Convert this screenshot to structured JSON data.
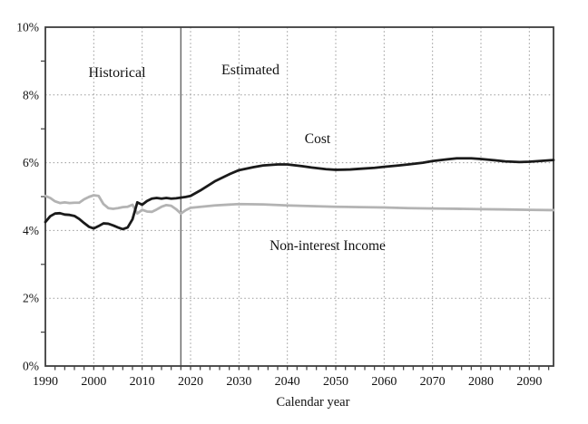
{
  "page": {
    "background": "#ffffff",
    "description": "Line chart of OASDI cost and non-interest income as a percentage, historical and estimated, 1990-2095"
  },
  "chart_data": {
    "type": "line",
    "title": "",
    "xlabel": "Calendar year",
    "ylabel": "",
    "x_range": [
      1990,
      2095
    ],
    "y_range": [
      0,
      10
    ],
    "y_unit": "%",
    "grid": "dotted gridlines at each labeled major tick; full rectangular frame; minor ticks every 1% on y-axis and every 2 years on x-axis",
    "legend_position": "none (labels drawn beside lines)",
    "x_ticks": [
      {
        "year": 1990,
        "label": "1990"
      },
      {
        "year": 2000,
        "label": "2000"
      },
      {
        "year": 2010,
        "label": "2010"
      },
      {
        "year": 2020,
        "label": "2020"
      },
      {
        "year": 2030,
        "label": "2030"
      },
      {
        "year": 2040,
        "label": "2040"
      },
      {
        "year": 2050,
        "label": "2050"
      },
      {
        "year": 2060,
        "label": "2060"
      },
      {
        "year": 2070,
        "label": "2070"
      },
      {
        "year": 2080,
        "label": "2080"
      },
      {
        "year": 2090,
        "label": "2090"
      }
    ],
    "y_ticks": [
      {
        "value": 0,
        "label": "0%"
      },
      {
        "value": 2,
        "label": "2%"
      },
      {
        "value": 4,
        "label": "4%"
      },
      {
        "value": 6,
        "label": "6%"
      },
      {
        "value": 8,
        "label": "8%"
      },
      {
        "value": 10,
        "label": "10%"
      }
    ],
    "divider_year": 2018,
    "annotations": {
      "historical": "Historical",
      "estimated": "Estimated",
      "cost": "Cost",
      "non_interest_income": "Non-interest Income"
    },
    "colors": {
      "cost_line": "#1a1a1a",
      "income_line": "#b3b3b3",
      "gridline": "#999999",
      "divider_line": "#666666",
      "frame": "#3d3d3d",
      "tick": "#3d3d3d"
    },
    "series": [
      {
        "name": "Cost",
        "color_key": "cost_line",
        "points": [
          [
            1990,
            4.25
          ],
          [
            1991,
            4.42
          ],
          [
            1992,
            4.5
          ],
          [
            1993,
            4.51
          ],
          [
            1994,
            4.47
          ],
          [
            1995,
            4.46
          ],
          [
            1996,
            4.43
          ],
          [
            1997,
            4.34
          ],
          [
            1998,
            4.22
          ],
          [
            1999,
            4.11
          ],
          [
            2000,
            4.06
          ],
          [
            2001,
            4.13
          ],
          [
            2002,
            4.21
          ],
          [
            2003,
            4.2
          ],
          [
            2004,
            4.15
          ],
          [
            2005,
            4.09
          ],
          [
            2006,
            4.04
          ],
          [
            2007,
            4.09
          ],
          [
            2008,
            4.33
          ],
          [
            2009,
            4.83
          ],
          [
            2010,
            4.76
          ],
          [
            2011,
            4.87
          ],
          [
            2012,
            4.94
          ],
          [
            2013,
            4.96
          ],
          [
            2014,
            4.94
          ],
          [
            2015,
            4.96
          ],
          [
            2016,
            4.94
          ],
          [
            2017,
            4.95
          ],
          [
            2018,
            4.97
          ],
          [
            2019,
            4.99
          ],
          [
            2020,
            5.02
          ],
          [
            2022,
            5.18
          ],
          [
            2025,
            5.45
          ],
          [
            2028,
            5.66
          ],
          [
            2030,
            5.78
          ],
          [
            2033,
            5.87
          ],
          [
            2035,
            5.92
          ],
          [
            2038,
            5.95
          ],
          [
            2040,
            5.95
          ],
          [
            2043,
            5.9
          ],
          [
            2045,
            5.86
          ],
          [
            2048,
            5.81
          ],
          [
            2050,
            5.79
          ],
          [
            2053,
            5.8
          ],
          [
            2055,
            5.82
          ],
          [
            2058,
            5.85
          ],
          [
            2060,
            5.88
          ],
          [
            2063,
            5.92
          ],
          [
            2065,
            5.95
          ],
          [
            2068,
            6.0
          ],
          [
            2070,
            6.05
          ],
          [
            2073,
            6.1
          ],
          [
            2075,
            6.13
          ],
          [
            2078,
            6.13
          ],
          [
            2080,
            6.11
          ],
          [
            2083,
            6.07
          ],
          [
            2085,
            6.04
          ],
          [
            2088,
            6.02
          ],
          [
            2090,
            6.03
          ],
          [
            2093,
            6.06
          ],
          [
            2095,
            6.08
          ]
        ]
      },
      {
        "name": "Non-interest Income",
        "color_key": "income_line",
        "points": [
          [
            1990,
            5.02
          ],
          [
            1991,
            4.96
          ],
          [
            1992,
            4.86
          ],
          [
            1993,
            4.81
          ],
          [
            1994,
            4.83
          ],
          [
            1995,
            4.81
          ],
          [
            1996,
            4.82
          ],
          [
            1997,
            4.82
          ],
          [
            1998,
            4.92
          ],
          [
            1999,
            4.99
          ],
          [
            2000,
            5.04
          ],
          [
            2001,
            5.02
          ],
          [
            2002,
            4.78
          ],
          [
            2003,
            4.66
          ],
          [
            2004,
            4.64
          ],
          [
            2005,
            4.66
          ],
          [
            2006,
            4.69
          ],
          [
            2007,
            4.7
          ],
          [
            2008,
            4.76
          ],
          [
            2009,
            4.5
          ],
          [
            2010,
            4.61
          ],
          [
            2011,
            4.56
          ],
          [
            2012,
            4.55
          ],
          [
            2013,
            4.62
          ],
          [
            2014,
            4.7
          ],
          [
            2015,
            4.75
          ],
          [
            2016,
            4.73
          ],
          [
            2017,
            4.63
          ],
          [
            2018,
            4.5
          ],
          [
            2019,
            4.6
          ],
          [
            2020,
            4.67
          ],
          [
            2025,
            4.74
          ],
          [
            2030,
            4.78
          ],
          [
            2035,
            4.77
          ],
          [
            2040,
            4.74
          ],
          [
            2045,
            4.72
          ],
          [
            2050,
            4.7
          ],
          [
            2055,
            4.69
          ],
          [
            2060,
            4.68
          ],
          [
            2065,
            4.66
          ],
          [
            2070,
            4.65
          ],
          [
            2075,
            4.64
          ],
          [
            2080,
            4.63
          ],
          [
            2085,
            4.62
          ],
          [
            2090,
            4.61
          ],
          [
            2095,
            4.6
          ]
        ]
      }
    ]
  }
}
